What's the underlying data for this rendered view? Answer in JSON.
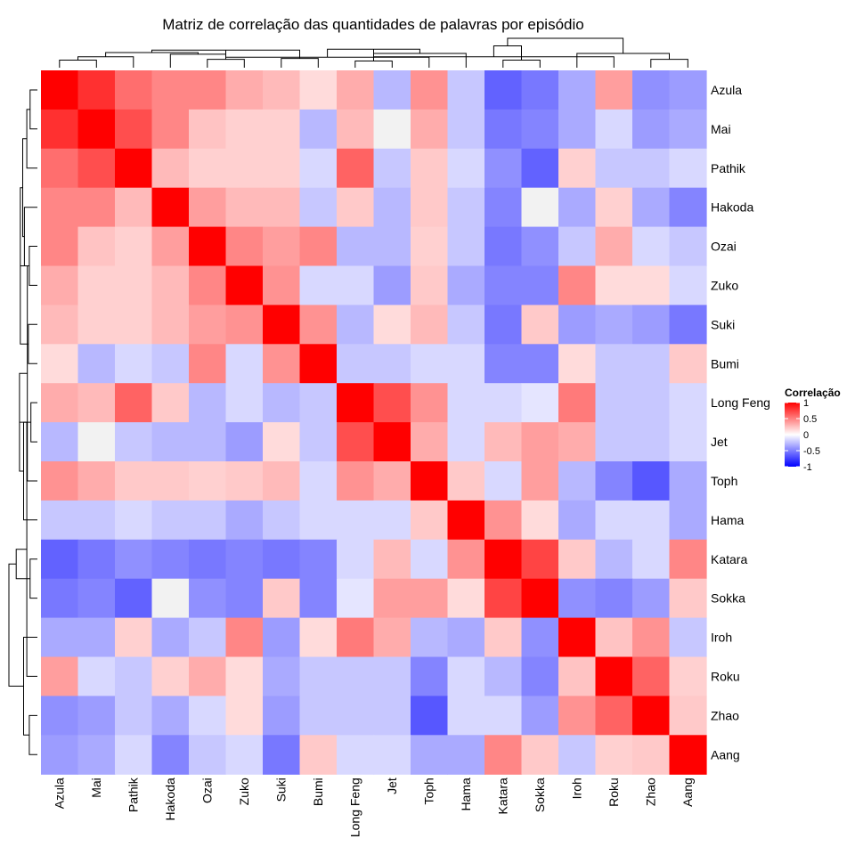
{
  "chart_data": {
    "type": "heatmap",
    "title": "Matriz de correlação das quantidades de palavras por episódio",
    "labels": [
      "Azula",
      "Mai",
      "Pathik",
      "Hakoda",
      "Ozai",
      "Zuko",
      "Suki",
      "Bumi",
      "Long Feng",
      "Jet",
      "Toph",
      "Hama",
      "Katara",
      "Sokka",
      "Iroh",
      "Roku",
      "Zhao",
      "Aang"
    ],
    "values": [
      [
        1.0,
        0.75,
        0.45,
        0.35,
        0.35,
        0.2,
        0.15,
        0.05,
        0.2,
        -0.15,
        0.3,
        -0.1,
        -0.5,
        -0.4,
        -0.2,
        0.25,
        -0.3,
        -0.25
      ],
      [
        0.75,
        1.0,
        0.6,
        0.35,
        0.12,
        0.08,
        0.08,
        -0.15,
        0.15,
        0.0,
        0.2,
        -0.1,
        -0.4,
        -0.35,
        -0.2,
        -0.05,
        -0.25,
        -0.2
      ],
      [
        0.45,
        0.6,
        1.0,
        0.15,
        0.08,
        0.08,
        0.08,
        -0.05,
        0.5,
        -0.1,
        0.1,
        -0.05,
        -0.3,
        -0.5,
        0.08,
        -0.1,
        -0.1,
        -0.05
      ],
      [
        0.35,
        0.35,
        0.15,
        1.0,
        0.25,
        0.15,
        0.15,
        -0.1,
        0.1,
        -0.15,
        0.1,
        -0.1,
        -0.35,
        0.0,
        -0.2,
        0.08,
        -0.2,
        -0.35
      ],
      [
        0.35,
        0.12,
        0.08,
        0.25,
        1.0,
        0.35,
        0.25,
        0.35,
        -0.15,
        -0.15,
        0.08,
        -0.1,
        -0.4,
        -0.3,
        -0.1,
        0.2,
        -0.05,
        -0.1
      ],
      [
        0.2,
        0.08,
        0.08,
        0.15,
        0.35,
        1.0,
        0.3,
        -0.05,
        -0.05,
        -0.25,
        0.1,
        -0.2,
        -0.35,
        -0.35,
        0.35,
        0.05,
        0.05,
        -0.05
      ],
      [
        0.15,
        0.08,
        0.08,
        0.15,
        0.25,
        0.3,
        1.0,
        0.3,
        -0.15,
        0.05,
        0.15,
        -0.1,
        -0.4,
        0.1,
        -0.25,
        -0.2,
        -0.25,
        -0.4
      ],
      [
        0.05,
        -0.15,
        -0.05,
        -0.1,
        0.35,
        -0.05,
        0.3,
        1.0,
        -0.1,
        -0.1,
        -0.05,
        -0.05,
        -0.35,
        -0.35,
        0.05,
        -0.1,
        -0.1,
        0.1
      ],
      [
        0.2,
        0.15,
        0.5,
        0.1,
        -0.15,
        -0.05,
        -0.15,
        -0.1,
        1.0,
        0.6,
        0.3,
        -0.05,
        -0.05,
        -0.02,
        0.4,
        -0.1,
        -0.1,
        -0.05
      ],
      [
        -0.15,
        0.0,
        -0.1,
        -0.15,
        -0.15,
        -0.25,
        0.05,
        -0.1,
        0.6,
        1.0,
        0.2,
        -0.05,
        0.15,
        0.25,
        0.2,
        -0.1,
        -0.1,
        -0.05
      ],
      [
        0.3,
        0.2,
        0.1,
        0.1,
        0.08,
        0.1,
        0.15,
        -0.05,
        0.3,
        0.2,
        1.0,
        0.1,
        -0.05,
        0.25,
        -0.15,
        -0.35,
        -0.55,
        -0.2
      ],
      [
        -0.1,
        -0.1,
        -0.05,
        -0.1,
        -0.1,
        -0.2,
        -0.1,
        -0.05,
        -0.05,
        -0.05,
        0.1,
        1.0,
        0.3,
        0.05,
        -0.2,
        -0.05,
        -0.05,
        -0.2
      ],
      [
        -0.5,
        -0.4,
        -0.3,
        -0.35,
        -0.4,
        -0.35,
        -0.4,
        -0.35,
        -0.05,
        0.15,
        -0.05,
        0.3,
        1.0,
        0.65,
        0.1,
        -0.15,
        -0.05,
        0.35
      ],
      [
        -0.4,
        -0.35,
        -0.5,
        0.0,
        -0.3,
        -0.35,
        0.1,
        -0.35,
        -0.02,
        0.25,
        0.25,
        0.05,
        0.65,
        1.0,
        -0.3,
        -0.35,
        -0.25,
        0.1
      ],
      [
        -0.2,
        -0.2,
        0.08,
        -0.2,
        -0.1,
        0.35,
        -0.25,
        0.05,
        0.4,
        0.2,
        -0.15,
        -0.2,
        0.1,
        -0.3,
        1.0,
        0.12,
        0.3,
        -0.1
      ],
      [
        0.25,
        -0.05,
        -0.1,
        0.08,
        0.2,
        0.05,
        -0.2,
        -0.1,
        -0.1,
        -0.1,
        -0.35,
        -0.05,
        -0.15,
        -0.35,
        0.12,
        1.0,
        0.5,
        0.08
      ],
      [
        -0.3,
        -0.25,
        -0.1,
        -0.2,
        -0.05,
        0.05,
        -0.25,
        -0.1,
        -0.1,
        -0.1,
        -0.55,
        -0.05,
        -0.05,
        -0.25,
        0.3,
        0.5,
        1.0,
        0.1
      ],
      [
        -0.25,
        -0.2,
        -0.05,
        -0.35,
        -0.1,
        -0.05,
        -0.4,
        0.1,
        -0.05,
        -0.05,
        -0.2,
        -0.2,
        0.35,
        0.1,
        -0.1,
        0.08,
        0.1,
        1.0
      ]
    ],
    "color_scale": {
      "min": -1,
      "max": 1,
      "low": "#0000ff",
      "mid": "#ffffff",
      "high": "#ff0000"
    },
    "legend": {
      "title": "Correlação",
      "ticks": [
        1,
        0.5,
        0,
        -0.5,
        -1
      ],
      "tick_labels": [
        "1",
        "0.5",
        "0",
        "-0.5",
        "-1"
      ],
      "placement": "right"
    },
    "dendrogram": {
      "row_merges": [
        [
          0,
          1,
          0.45
        ],
        [
          2,
          18,
          0.65
        ],
        [
          4,
          5,
          0.5
        ],
        [
          3,
          20,
          0.8
        ],
        [
          19,
          21,
          0.9
        ],
        [
          6,
          7,
          0.55
        ],
        [
          22,
          23,
          1.05
        ],
        [
          8,
          9,
          0.4
        ],
        [
          24,
          10,
          0.62
        ],
        [
          25,
          11,
          0.85
        ],
        [
          12,
          13,
          0.45
        ],
        [
          26,
          27,
          1.1
        ],
        [
          16,
          17,
          0.5
        ],
        [
          15,
          29,
          0.65
        ],
        [
          14,
          30,
          0.85
        ],
        [
          28,
          31,
          1.3
        ],
        [
          32,
          33,
          1.75
        ]
      ]
    }
  }
}
